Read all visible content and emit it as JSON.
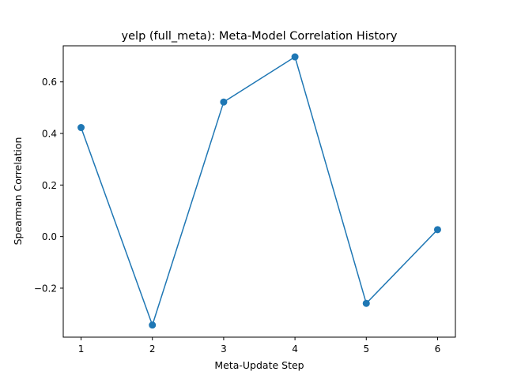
{
  "chart_data": {
    "type": "line",
    "title": "yelp (full_meta): Meta-Model Correlation History",
    "xlabel": "Meta-Update Step",
    "ylabel": "Spearman Correlation",
    "x": [
      1,
      2,
      3,
      4,
      5,
      6
    ],
    "series": [
      {
        "values": [
          0.423,
          -0.343,
          0.522,
          0.697,
          -0.259,
          0.027
        ],
        "color": "#1f77b4",
        "marker": "circle"
      }
    ],
    "xlim": [
      0.75,
      6.25
    ],
    "ylim": [
      -0.39,
      0.74
    ],
    "xticks": [
      1,
      2,
      3,
      4,
      5,
      6
    ],
    "yticks": [
      -0.2,
      0.0,
      0.2,
      0.4,
      0.6
    ],
    "xtick_labels": [
      "1",
      "2",
      "3",
      "4",
      "5",
      "6"
    ],
    "ytick_labels": [
      "−0.2",
      "0.0",
      "0.2",
      "0.4",
      "0.6"
    ],
    "grid": false
  }
}
